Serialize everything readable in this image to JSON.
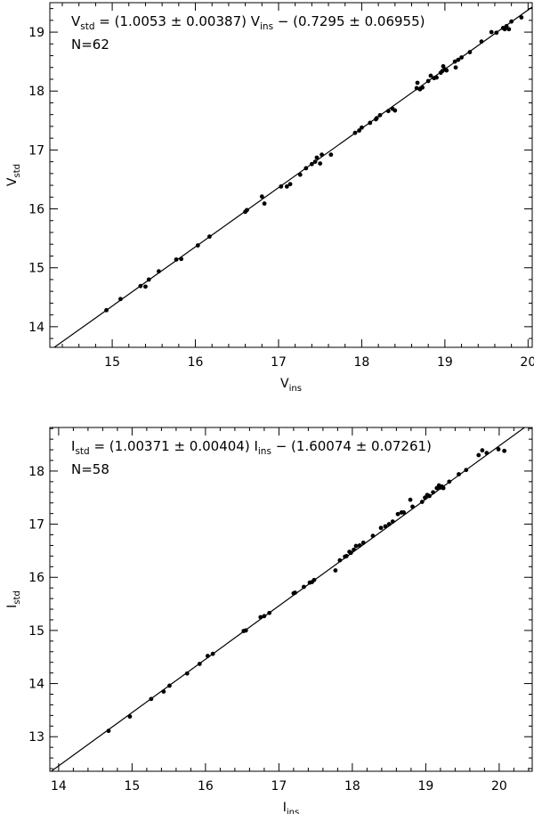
{
  "chart_data": [
    {
      "type": "scatter",
      "equation": {
        "y_sym": "V",
        "y_sub": "std",
        "x_sym": "V",
        "x_sub": "ins",
        "eq": "= (1.0053 ± 0.00387)",
        "tail": "− (0.7295 ± 0.06955)"
      },
      "n_label": "N=62",
      "xlabel": {
        "sym": "V",
        "sub": "ins"
      },
      "ylabel": {
        "sym": "V",
        "sub": "std"
      },
      "xlim": [
        14.25,
        20.05
      ],
      "ylim": [
        13.65,
        19.5
      ],
      "xticks": [
        15,
        16,
        17,
        18,
        19,
        20
      ],
      "yticks": [
        14,
        15,
        16,
        17,
        18,
        19
      ],
      "fit": {
        "slope": 1.0053,
        "intercept": -0.7295
      },
      "points": [
        [
          14.93,
          14.28
        ],
        [
          15.1,
          14.47
        ],
        [
          15.34,
          14.69
        ],
        [
          15.4,
          14.68
        ],
        [
          15.44,
          14.8
        ],
        [
          15.56,
          14.94
        ],
        [
          15.77,
          15.14
        ],
        [
          15.83,
          15.15
        ],
        [
          16.03,
          15.38
        ],
        [
          16.17,
          15.53
        ],
        [
          16.6,
          15.95
        ],
        [
          16.62,
          15.98
        ],
        [
          16.8,
          16.21
        ],
        [
          16.83,
          16.09
        ],
        [
          17.03,
          16.38
        ],
        [
          17.1,
          16.38
        ],
        [
          17.14,
          16.42
        ],
        [
          17.26,
          16.58
        ],
        [
          17.33,
          16.69
        ],
        [
          17.4,
          16.76
        ],
        [
          17.44,
          16.8
        ],
        [
          17.46,
          16.87
        ],
        [
          17.5,
          16.77
        ],
        [
          17.52,
          16.92
        ],
        [
          17.63,
          16.92
        ],
        [
          17.92,
          17.29
        ],
        [
          17.97,
          17.33
        ],
        [
          18.0,
          17.38
        ],
        [
          18.1,
          17.46
        ],
        [
          18.17,
          17.52
        ],
        [
          18.18,
          17.54
        ],
        [
          18.32,
          17.66
        ],
        [
          18.37,
          17.7
        ],
        [
          18.4,
          17.67
        ],
        [
          18.66,
          18.05
        ],
        [
          18.67,
          18.14
        ],
        [
          18.7,
          18.03
        ],
        [
          18.73,
          18.06
        ],
        [
          18.8,
          18.17
        ],
        [
          18.83,
          18.26
        ],
        [
          18.87,
          18.22
        ],
        [
          18.9,
          18.23
        ],
        [
          18.95,
          18.31
        ],
        [
          18.97,
          18.34
        ],
        [
          18.98,
          18.42
        ],
        [
          19.02,
          18.35
        ],
        [
          19.12,
          18.5
        ],
        [
          19.13,
          18.4
        ],
        [
          19.16,
          18.53
        ],
        [
          19.2,
          18.57
        ],
        [
          19.3,
          18.66
        ],
        [
          19.44,
          18.84
        ],
        [
          19.56,
          19.0
        ],
        [
          19.62,
          18.99
        ],
        [
          19.7,
          19.07
        ],
        [
          19.72,
          19.05
        ],
        [
          19.74,
          19.1
        ],
        [
          19.77,
          19.05
        ],
        [
          19.8,
          19.18
        ],
        [
          19.92,
          19.25
        ],
        [
          19.0,
          18.37
        ],
        [
          18.22,
          17.59
        ]
      ]
    },
    {
      "type": "scatter",
      "equation": {
        "y_sym": "I",
        "y_sub": "std",
        "x_sym": "I",
        "x_sub": "ins",
        "eq": "= (1.00371 ± 0.00404)",
        "tail": "− (1.60074 ± 0.07261)"
      },
      "n_label": "N=58",
      "xlabel": {
        "sym": "I",
        "sub": "ins"
      },
      "ylabel": {
        "sym": "I",
        "sub": "std"
      },
      "xlim": [
        13.88,
        20.45
      ],
      "ylim": [
        12.35,
        18.82
      ],
      "xticks": [
        14,
        15,
        16,
        17,
        18,
        19,
        20
      ],
      "yticks": [
        13,
        14,
        15,
        16,
        17,
        18
      ],
      "fit": {
        "slope": 1.00371,
        "intercept": -1.60074
      },
      "points": [
        [
          14.68,
          13.11
        ],
        [
          14.97,
          13.38
        ],
        [
          15.26,
          13.71
        ],
        [
          15.43,
          13.85
        ],
        [
          15.51,
          13.96
        ],
        [
          15.75,
          14.19
        ],
        [
          15.92,
          14.37
        ],
        [
          16.03,
          14.52
        ],
        [
          16.1,
          14.56
        ],
        [
          16.52,
          14.99
        ],
        [
          16.55,
          15.0
        ],
        [
          16.75,
          15.25
        ],
        [
          16.8,
          15.27
        ],
        [
          16.87,
          15.33
        ],
        [
          17.2,
          15.7
        ],
        [
          17.22,
          15.71
        ],
        [
          17.34,
          15.82
        ],
        [
          17.42,
          15.9
        ],
        [
          17.45,
          15.91
        ],
        [
          17.77,
          16.13
        ],
        [
          17.83,
          16.32
        ],
        [
          17.9,
          16.39
        ],
        [
          17.92,
          16.4
        ],
        [
          17.96,
          16.48
        ],
        [
          17.98,
          16.46
        ],
        [
          18.02,
          16.52
        ],
        [
          18.05,
          16.59
        ],
        [
          18.1,
          16.6
        ],
        [
          18.15,
          16.65
        ],
        [
          18.28,
          16.78
        ],
        [
          18.39,
          16.93
        ],
        [
          18.5,
          17.0
        ],
        [
          18.55,
          17.05
        ],
        [
          18.62,
          17.19
        ],
        [
          18.67,
          17.22
        ],
        [
          18.7,
          17.22
        ],
        [
          18.79,
          17.46
        ],
        [
          18.82,
          17.33
        ],
        [
          18.95,
          17.42
        ],
        [
          18.99,
          17.5
        ],
        [
          19.02,
          17.55
        ],
        [
          19.05,
          17.53
        ],
        [
          19.15,
          17.68
        ],
        [
          19.18,
          17.73
        ],
        [
          19.2,
          17.69
        ],
        [
          19.22,
          17.71
        ],
        [
          19.24,
          17.68
        ],
        [
          19.32,
          17.8
        ],
        [
          19.45,
          17.94
        ],
        [
          19.55,
          18.02
        ],
        [
          19.72,
          18.3
        ],
        [
          19.77,
          18.39
        ],
        [
          19.83,
          18.34
        ],
        [
          19.99,
          18.41
        ],
        [
          20.07,
          18.38
        ],
        [
          19.1,
          17.6
        ],
        [
          18.45,
          16.96
        ],
        [
          17.48,
          15.95
        ]
      ]
    }
  ]
}
